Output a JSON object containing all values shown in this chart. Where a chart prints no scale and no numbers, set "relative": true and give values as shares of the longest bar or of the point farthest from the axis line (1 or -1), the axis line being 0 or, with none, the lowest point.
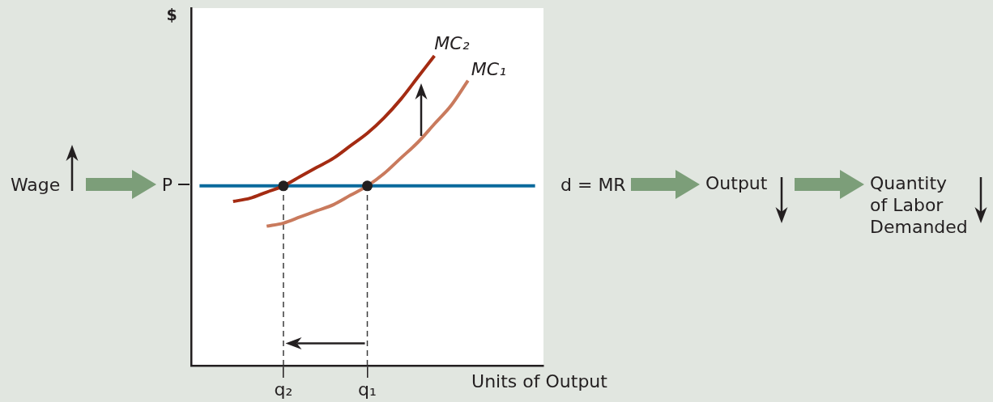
{
  "chart_data": {
    "type": "line",
    "relative": true,
    "xlabel": "Units of Output",
    "ylabel": "$",
    "categories": [
      null,
      null,
      null,
      null,
      null,
      "q₂",
      null,
      null,
      null,
      null,
      "q₁",
      null,
      null,
      null,
      null,
      null,
      null,
      null,
      null,
      null,
      null
    ],
    "series": [
      {
        "name": "MC₂",
        "type": "line",
        "color": "#a42b12",
        "values": [
          null,
          null,
          0.53,
          0.54,
          0.56,
          0.58,
          0.61,
          0.64,
          0.67,
          0.71,
          0.75,
          0.8,
          0.86,
          0.93,
          1.0,
          null,
          null,
          null,
          null,
          null,
          null
        ]
      },
      {
        "name": "MC₁",
        "type": "line",
        "color": "#c97a5d",
        "values": [
          null,
          null,
          null,
          null,
          0.45,
          0.46,
          0.48,
          0.5,
          0.52,
          0.55,
          0.58,
          0.62,
          0.67,
          0.72,
          0.78,
          0.84,
          0.92,
          null,
          null,
          null,
          null
        ]
      },
      {
        "name": "d = MR",
        "type": "line",
        "color": "#0a6a9c",
        "values": [
          0.58,
          0.58,
          0.58,
          0.58,
          0.58,
          0.58,
          0.58,
          0.58,
          0.58,
          0.58,
          0.58,
          0.58,
          0.58,
          0.58,
          0.58,
          0.58,
          0.58,
          0.58,
          0.58,
          0.58,
          0.58
        ]
      },
      {
        "type": "line",
        "color": "#3c3c3c",
        "line_style": "dashed",
        "x": [
          "q₂",
          "q₂"
        ],
        "values": [
          0,
          0.58
        ]
      },
      {
        "type": "line",
        "color": "#3c3c3c",
        "line_style": "dashed",
        "x": [
          "q₁",
          "q₁"
        ],
        "values": [
          0,
          0.58
        ]
      },
      {
        "type": "scatter",
        "color": "#231f20",
        "marker": "circle",
        "x": [
          "q₂",
          "q₁"
        ],
        "values": [
          0.58,
          0.58
        ]
      }
    ],
    "annotations": [
      "Wage",
      "P",
      "Output",
      "Quantity\nof Labor\nDemanded"
    ]
  }
}
